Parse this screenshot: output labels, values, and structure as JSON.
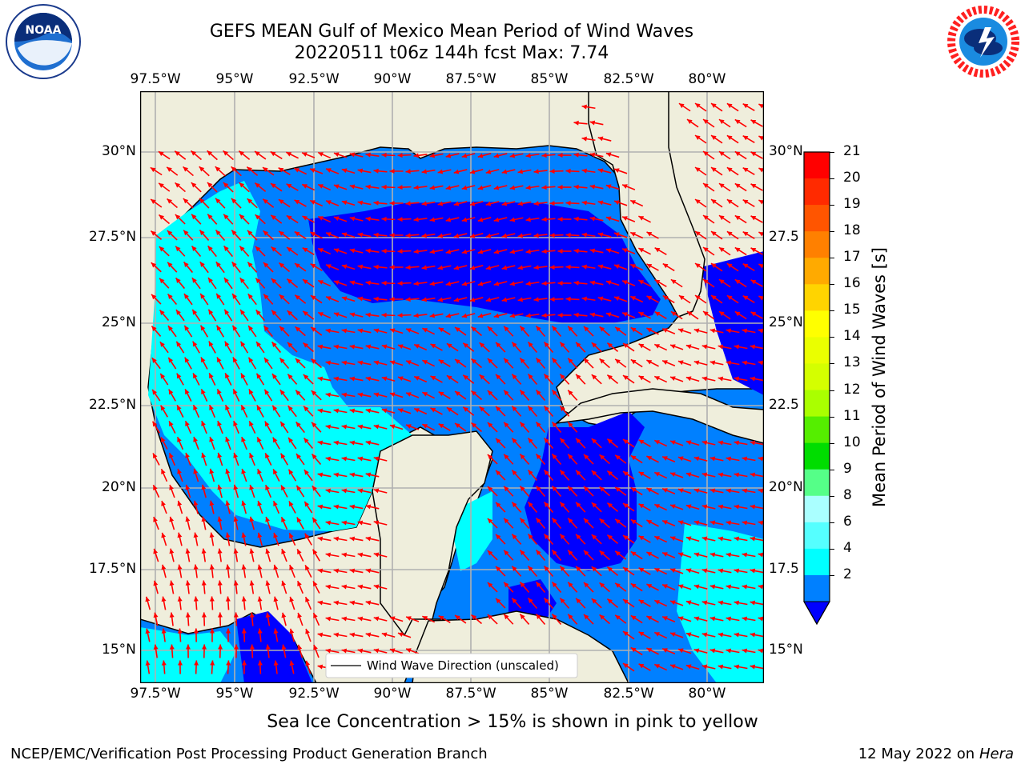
{
  "title": {
    "line1": "GEFS MEAN Gulf of Mexico Mean Period of Wind Waves",
    "line2": "20220511 t06z 144h fcst   Max: 7.74"
  },
  "logos": {
    "left": {
      "icon": "noaa-logo",
      "text": "NOAA",
      "ring_text": "NATIONAL OCEANIC AND ATMOSPHERIC ADMINISTRATION · U.S. DEPARTMENT OF COMMERCE"
    },
    "right": {
      "icon": "nws-logo",
      "ring_text": "NATIONAL WEATHER SERVICE"
    }
  },
  "map": {
    "lon_ticks": [
      "97.5°W",
      "95°W",
      "92.5°W",
      "90°W",
      "87.5°W",
      "85°W",
      "82.5°W",
      "80°W"
    ],
    "lat_ticks_left": [
      "30°N",
      "27.5°N",
      "25°N",
      "22.5°N",
      "20°N",
      "17.5°N",
      "15°N"
    ],
    "lat_ticks_right": [
      "30°N",
      "27.5",
      "25°N",
      "22.5",
      "20°N",
      "17.5",
      "15°N"
    ],
    "legend": "Wind Wave Direction (unscaled)",
    "colors": {
      "land": "#efeedc",
      "arrow": "#ff0000"
    }
  },
  "colorbar": {
    "label": "Mean Period of Wind Waves [s]",
    "ticks": [
      "21",
      "20",
      "19",
      "18",
      "17",
      "16",
      "15",
      "14",
      "13",
      "12",
      "11",
      "10",
      "9",
      "8",
      "6",
      "4",
      "2"
    ],
    "colors": [
      "#ff0000",
      "#ff2a00",
      "#ff5500",
      "#ff8000",
      "#ffaa00",
      "#ffd400",
      "#ffff00",
      "#eaff00",
      "#d4ff00",
      "#aaff00",
      "#55ee00",
      "#00dd00",
      "#55ff88",
      "#aaffff",
      "#55ffff",
      "#00ffff",
      "#0080ff"
    ],
    "extend_color": "#0000ff"
  },
  "footer": {
    "note": "Sea Ice Concentration > 15% is shown in pink to yellow",
    "left": "NCEP/EMC/Verification Post Processing Product Generation Branch",
    "right_date": "12 May 2022 on",
    "right_machine": "Hera"
  }
}
